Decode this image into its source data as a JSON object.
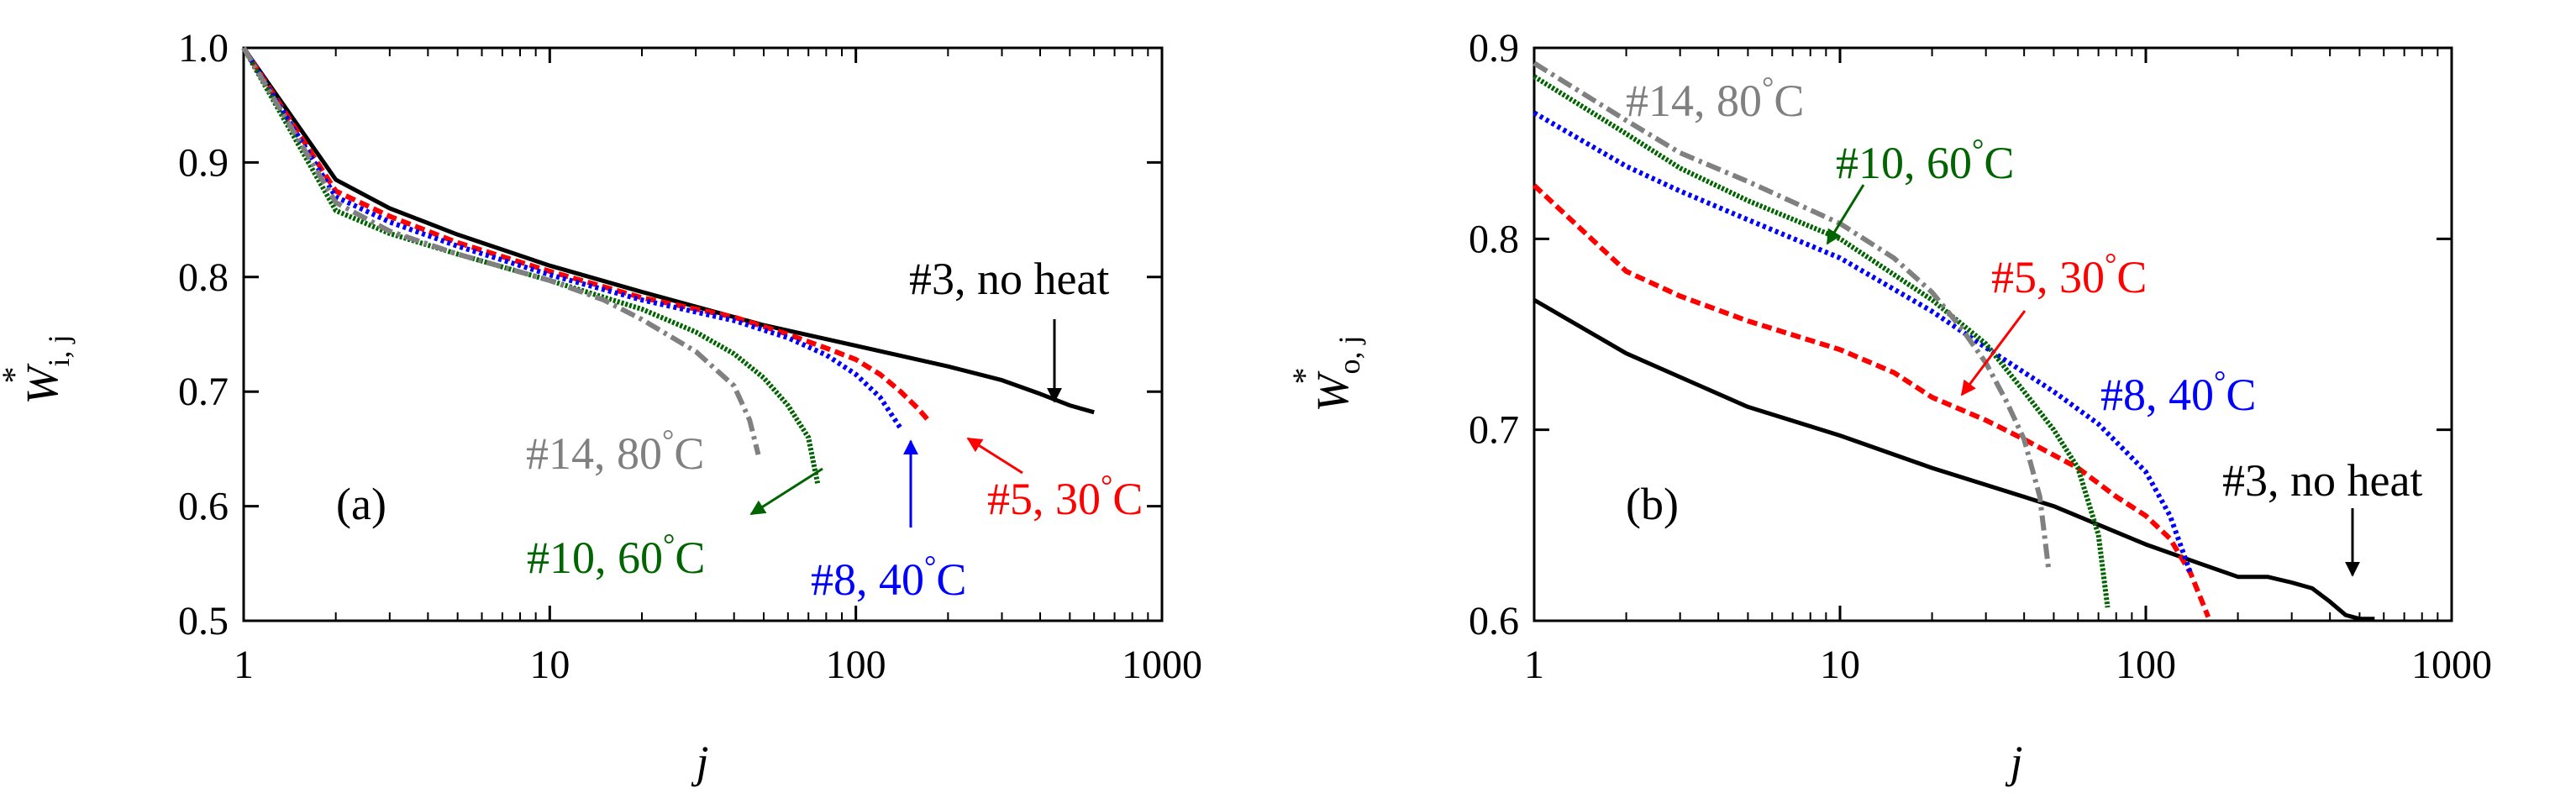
{
  "chart_data": [
    {
      "type": "line",
      "panel_label": "(a)",
      "xscale": "log",
      "xlim": [
        1,
        1000
      ],
      "ylim": [
        0.5,
        1.0
      ],
      "xlabel": "j",
      "ylabel": {
        "main": "W",
        "sub": "i, j",
        "sup": "*"
      },
      "x_ticks": [
        {
          "value": 1,
          "label": "1"
        },
        {
          "value": 10,
          "label": "10"
        },
        {
          "value": 100,
          "label": "100"
        },
        {
          "value": 1000,
          "label": "1000"
        }
      ],
      "y_ticks": [
        {
          "value": 0.5,
          "label": "0.5"
        },
        {
          "value": 0.6,
          "label": "0.6"
        },
        {
          "value": 0.7,
          "label": "0.7"
        },
        {
          "value": 0.8,
          "label": "0.8"
        },
        {
          "value": 0.9,
          "label": "0.9"
        },
        {
          "value": 1.0,
          "label": "1.0"
        }
      ],
      "series": [
        {
          "name": "#3, no heat",
          "color": "#000000",
          "style": "solid",
          "points": [
            [
              1,
              1.0
            ],
            [
              2,
              0.885
            ],
            [
              3,
              0.86
            ],
            [
              5,
              0.837
            ],
            [
              10,
              0.81
            ],
            [
              20,
              0.787
            ],
            [
              50,
              0.758
            ],
            [
              100,
              0.74
            ],
            [
              200,
              0.722
            ],
            [
              300,
              0.71
            ],
            [
              400,
              0.698
            ],
            [
              500,
              0.688
            ],
            [
              600,
              0.682
            ]
          ]
        },
        {
          "name": "#5, 30°C",
          "color": "#ff0000",
          "style": "dashed",
          "points": [
            [
              1,
              1.0
            ],
            [
              2,
              0.875
            ],
            [
              3,
              0.853
            ],
            [
              5,
              0.83
            ],
            [
              10,
              0.805
            ],
            [
              20,
              0.782
            ],
            [
              40,
              0.765
            ],
            [
              60,
              0.75
            ],
            [
              80,
              0.738
            ],
            [
              100,
              0.728
            ],
            [
              120,
              0.715
            ],
            [
              140,
              0.7
            ],
            [
              160,
              0.685
            ],
            [
              175,
              0.673
            ]
          ]
        },
        {
          "name": "#8, 40°C",
          "color": "#0000ff",
          "style": "dotted",
          "points": [
            [
              1,
              1.0
            ],
            [
              2,
              0.87
            ],
            [
              3,
              0.848
            ],
            [
              5,
              0.827
            ],
            [
              10,
              0.802
            ],
            [
              20,
              0.78
            ],
            [
              40,
              0.762
            ],
            [
              60,
              0.747
            ],
            [
              80,
              0.732
            ],
            [
              100,
              0.715
            ],
            [
              120,
              0.695
            ],
            [
              140,
              0.668
            ]
          ]
        },
        {
          "name": "#10, 60°C",
          "color": "#006400",
          "style": "dense-dotted",
          "points": [
            [
              1,
              1.0
            ],
            [
              2,
              0.858
            ],
            [
              3,
              0.838
            ],
            [
              5,
              0.82
            ],
            [
              10,
              0.797
            ],
            [
              20,
              0.772
            ],
            [
              30,
              0.752
            ],
            [
              40,
              0.733
            ],
            [
              50,
              0.712
            ],
            [
              60,
              0.688
            ],
            [
              70,
              0.66
            ],
            [
              75,
              0.62
            ]
          ]
        },
        {
          "name": "#14, 80°C",
          "color": "#808080",
          "style": "dash-dot",
          "points": [
            [
              1,
              1.0
            ],
            [
              2,
              0.865
            ],
            [
              3,
              0.84
            ],
            [
              5,
              0.82
            ],
            [
              10,
              0.797
            ],
            [
              15,
              0.78
            ],
            [
              20,
              0.763
            ],
            [
              30,
              0.735
            ],
            [
              40,
              0.705
            ],
            [
              45,
              0.675
            ],
            [
              48,
              0.645
            ]
          ]
        }
      ],
      "annotations": [
        {
          "parts": [
            {
              "text": "#3, no heat"
            }
          ],
          "color": "#000000"
        },
        {
          "parts": [
            {
              "text": "#5, 30"
            },
            {
              "text": "°",
              "sup": true
            },
            {
              "text": "C"
            }
          ],
          "color": "#ff0000"
        },
        {
          "parts": [
            {
              "text": "#8, 40"
            },
            {
              "text": "°",
              "sup": true
            },
            {
              "text": "C"
            }
          ],
          "color": "#0000ff"
        },
        {
          "parts": [
            {
              "text": "#10, 60"
            },
            {
              "text": "°",
              "sup": true
            },
            {
              "text": "C"
            }
          ],
          "color": "#006400"
        },
        {
          "parts": [
            {
              "text": "#14, 80"
            },
            {
              "text": "°",
              "sup": true
            },
            {
              "text": "C"
            }
          ],
          "color": "#808080"
        }
      ]
    },
    {
      "type": "line",
      "panel_label": "(b)",
      "xscale": "log",
      "xlim": [
        1,
        1000
      ],
      "ylim": [
        0.6,
        0.9
      ],
      "xlabel": "j",
      "ylabel": {
        "main": "W",
        "sub": "o, j",
        "sup": "*"
      },
      "x_ticks": [
        {
          "value": 1,
          "label": "1"
        },
        {
          "value": 10,
          "label": "10"
        },
        {
          "value": 100,
          "label": "100"
        },
        {
          "value": 1000,
          "label": "1000"
        }
      ],
      "y_ticks": [
        {
          "value": 0.6,
          "label": "0.6"
        },
        {
          "value": 0.7,
          "label": "0.7"
        },
        {
          "value": 0.8,
          "label": "0.8"
        },
        {
          "value": 0.9,
          "label": "0.9"
        }
      ],
      "series": [
        {
          "name": "#3, no heat",
          "color": "#000000",
          "style": "solid",
          "points": [
            [
              1,
              0.768
            ],
            [
              2,
              0.74
            ],
            [
              5,
              0.712
            ],
            [
              10,
              0.697
            ],
            [
              20,
              0.68
            ],
            [
              50,
              0.66
            ],
            [
              100,
              0.64
            ],
            [
              150,
              0.63
            ],
            [
              200,
              0.623
            ],
            [
              250,
              0.623
            ],
            [
              300,
              0.62
            ],
            [
              350,
              0.617
            ],
            [
              400,
              0.61
            ],
            [
              450,
              0.603
            ],
            [
              500,
              0.601
            ],
            [
              560,
              0.601
            ]
          ]
        },
        {
          "name": "#5, 30°C",
          "color": "#ff0000",
          "style": "dashed",
          "points": [
            [
              1,
              0.828
            ],
            [
              2,
              0.783
            ],
            [
              3,
              0.77
            ],
            [
              5,
              0.757
            ],
            [
              10,
              0.742
            ],
            [
              15,
              0.73
            ],
            [
              20,
              0.717
            ],
            [
              30,
              0.705
            ],
            [
              40,
              0.695
            ],
            [
              60,
              0.68
            ],
            [
              80,
              0.665
            ],
            [
              100,
              0.655
            ],
            [
              120,
              0.643
            ],
            [
              140,
              0.625
            ],
            [
              160,
              0.602
            ]
          ]
        },
        {
          "name": "#8, 40°C",
          "color": "#0000ff",
          "style": "dotted",
          "points": [
            [
              1,
              0.866
            ],
            [
              2,
              0.838
            ],
            [
              3,
              0.825
            ],
            [
              5,
              0.81
            ],
            [
              10,
              0.79
            ],
            [
              20,
              0.762
            ],
            [
              30,
              0.743
            ],
            [
              50,
              0.72
            ],
            [
              70,
              0.703
            ],
            [
              100,
              0.678
            ],
            [
              120,
              0.655
            ],
            [
              140,
              0.625
            ]
          ]
        },
        {
          "name": "#10, 60°C",
          "color": "#006400",
          "style": "dense-dotted",
          "points": [
            [
              1,
              0.885
            ],
            [
              2,
              0.855
            ],
            [
              3,
              0.837
            ],
            [
              5,
              0.82
            ],
            [
              10,
              0.8
            ],
            [
              20,
              0.768
            ],
            [
              30,
              0.745
            ],
            [
              40,
              0.72
            ],
            [
              50,
              0.7
            ],
            [
              60,
              0.68
            ],
            [
              70,
              0.645
            ],
            [
              75,
              0.607
            ]
          ]
        },
        {
          "name": "#14, 80°C",
          "color": "#808080",
          "style": "dash-dot",
          "points": [
            [
              1,
              0.892
            ],
            [
              2,
              0.862
            ],
            [
              3,
              0.845
            ],
            [
              5,
              0.83
            ],
            [
              10,
              0.808
            ],
            [
              15,
              0.79
            ],
            [
              20,
              0.772
            ],
            [
              25,
              0.753
            ],
            [
              30,
              0.735
            ],
            [
              35,
              0.715
            ],
            [
              40,
              0.695
            ],
            [
              45,
              0.665
            ],
            [
              48,
              0.628
            ]
          ]
        }
      ],
      "annotations": [
        {
          "parts": [
            {
              "text": "#14, 80"
            },
            {
              "text": "°",
              "sup": true
            },
            {
              "text": "C"
            }
          ],
          "color": "#808080"
        },
        {
          "parts": [
            {
              "text": "#10, 60"
            },
            {
              "text": "°",
              "sup": true
            },
            {
              "text": "C"
            }
          ],
          "color": "#006400"
        },
        {
          "parts": [
            {
              "text": "#5, 30"
            },
            {
              "text": "°",
              "sup": true
            },
            {
              "text": "C"
            }
          ],
          "color": "#ff0000"
        },
        {
          "parts": [
            {
              "text": "#8, 40"
            },
            {
              "text": "°",
              "sup": true
            },
            {
              "text": "C"
            }
          ],
          "color": "#0000ff"
        },
        {
          "parts": [
            {
              "text": "#3, no heat"
            }
          ],
          "color": "#000000"
        }
      ]
    }
  ]
}
